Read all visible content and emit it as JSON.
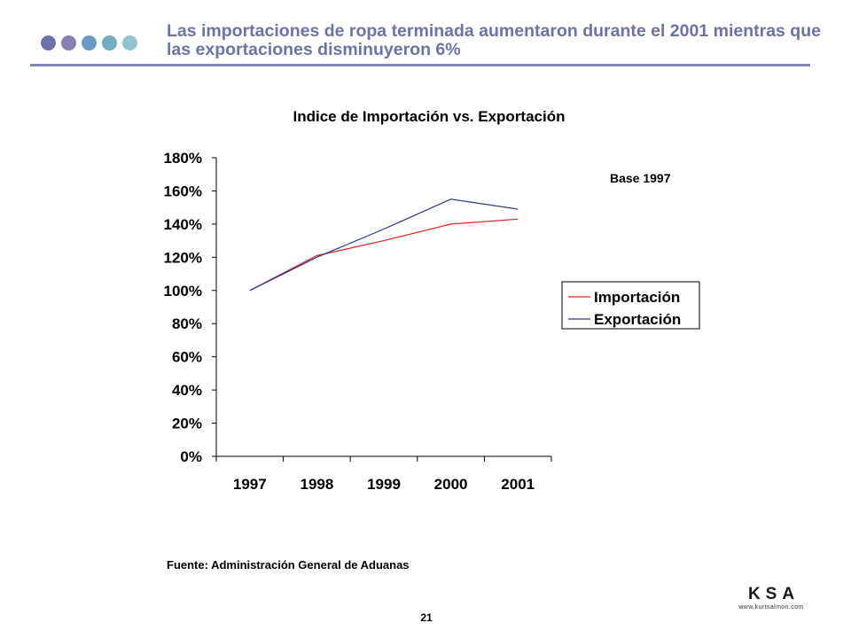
{
  "header": {
    "title": "Las importaciones de ropa terminada aumentaron durante el 2001 mientras que las exportaciones disminuyeron 6%",
    "dot_colors": [
      "#6c73a8",
      "#8a7fb3",
      "#6a9bc4",
      "#72acc5",
      "#93c2d0"
    ]
  },
  "chart_data": {
    "type": "line",
    "title": "Indice de Importación vs. Exportación",
    "annotation": "Base 1997",
    "categories": [
      "1997",
      "1998",
      "1999",
      "2000",
      "2001"
    ],
    "y_ticks": [
      "0%",
      "20%",
      "40%",
      "60%",
      "80%",
      "100%",
      "120%",
      "140%",
      "160%",
      "180%"
    ],
    "ylim": [
      0,
      180
    ],
    "grid": false,
    "legend_position": "right",
    "series": [
      {
        "name": "Importación",
        "color": "#e0201f",
        "values": [
          100,
          121,
          130,
          140,
          143
        ]
      },
      {
        "name": "Exportación",
        "color": "#2c3a92",
        "values": [
          100,
          120,
          137,
          155,
          149
        ]
      }
    ]
  },
  "footer": {
    "source": "Fuente: Administración General de Aduanas",
    "page_number": "21",
    "logo_text": "KSA",
    "logo_url": "www.kurtsalmon.com"
  }
}
